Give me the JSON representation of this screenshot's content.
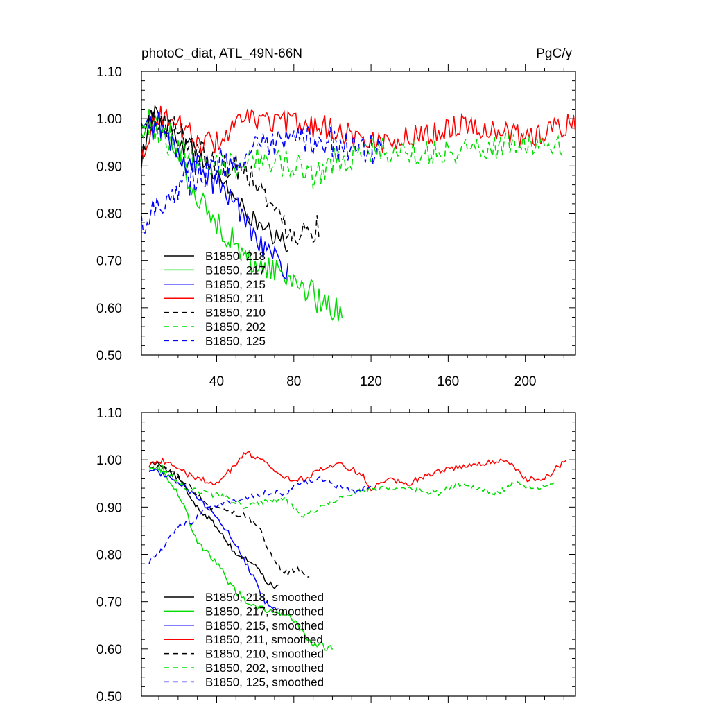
{
  "chart_data": [
    {
      "type": "line",
      "panel": "top",
      "title_left": "photoC_diat, ATL_49N-66N",
      "title_right": "PgC/y",
      "xlabel": "",
      "ylabel": "",
      "xlim": [
        1,
        226
      ],
      "ylim": [
        0.5,
        1.1
      ],
      "xticks": [
        40,
        80,
        120,
        160,
        200
      ],
      "xtick_labels": [
        "40",
        "80",
        "120",
        "160",
        "200"
      ],
      "yticks": [
        0.5,
        0.6,
        0.7,
        0.8,
        0.9,
        1.0,
        1.1
      ],
      "ytick_labels": [
        "0.50",
        "0.60",
        "0.70",
        "0.80",
        "0.90",
        "1.00",
        "1.10"
      ],
      "legend_position": "bottom-left",
      "series": [
        {
          "name": "B1850, 218",
          "color": "#000000",
          "dash": "solid",
          "length": 77,
          "anchors": [
            [
              1,
              0.89
            ],
            [
              5,
              1.02
            ],
            [
              15,
              0.98
            ],
            [
              30,
              0.92
            ],
            [
              45,
              0.86
            ],
            [
              55,
              0.8
            ],
            [
              65,
              0.76
            ],
            [
              77,
              0.73
            ]
          ],
          "noise": 0.025
        },
        {
          "name": "B1850, 217",
          "color": "#00dd00",
          "dash": "solid",
          "length": 105,
          "anchors": [
            [
              1,
              0.96
            ],
            [
              5,
              1.0
            ],
            [
              15,
              0.97
            ],
            [
              25,
              0.88
            ],
            [
              35,
              0.8
            ],
            [
              45,
              0.76
            ],
            [
              55,
              0.7
            ],
            [
              70,
              0.68
            ],
            [
              85,
              0.65
            ],
            [
              95,
              0.6
            ],
            [
              105,
              0.6
            ]
          ],
          "noise": 0.03
        },
        {
          "name": "B1850, 215",
          "color": "#0000ff",
          "dash": "solid",
          "length": 77,
          "anchors": [
            [
              1,
              0.97
            ],
            [
              10,
              0.99
            ],
            [
              20,
              0.92
            ],
            [
              30,
              0.9
            ],
            [
              40,
              0.86
            ],
            [
              50,
              0.82
            ],
            [
              60,
              0.76
            ],
            [
              70,
              0.7
            ],
            [
              77,
              0.68
            ]
          ],
          "noise": 0.03
        },
        {
          "name": "B1850, 211",
          "color": "#ff0000",
          "dash": "solid",
          "length": 226,
          "anchors": [
            [
              1,
              0.93
            ],
            [
              10,
              1.01
            ],
            [
              20,
              0.99
            ],
            [
              30,
              0.95
            ],
            [
              40,
              0.95
            ],
            [
              55,
              1.0
            ],
            [
              80,
              0.99
            ],
            [
              100,
              0.98
            ],
            [
              120,
              0.95
            ],
            [
              140,
              0.96
            ],
            [
              170,
              0.99
            ],
            [
              200,
              0.96
            ],
            [
              226,
              0.99
            ]
          ],
          "noise": 0.025
        },
        {
          "name": "B1850, 210",
          "color": "#000000",
          "dash": "dashed",
          "length": 93,
          "anchors": [
            [
              1,
              0.98
            ],
            [
              10,
              1.0
            ],
            [
              25,
              0.96
            ],
            [
              40,
              0.9
            ],
            [
              50,
              0.9
            ],
            [
              60,
              0.88
            ],
            [
              70,
              0.8
            ],
            [
              80,
              0.76
            ],
            [
              93,
              0.77
            ]
          ],
          "noise": 0.03
        },
        {
          "name": "B1850, 202",
          "color": "#00dd00",
          "dash": "dashed",
          "length": 220,
          "anchors": [
            [
              1,
              0.97
            ],
            [
              10,
              0.96
            ],
            [
              25,
              0.92
            ],
            [
              45,
              0.9
            ],
            [
              60,
              0.92
            ],
            [
              80,
              0.9
            ],
            [
              90,
              0.88
            ],
            [
              100,
              0.91
            ],
            [
              120,
              0.93
            ],
            [
              150,
              0.93
            ],
            [
              180,
              0.94
            ],
            [
              200,
              0.95
            ],
            [
              220,
              0.93
            ]
          ],
          "noise": 0.03
        },
        {
          "name": "B1850, 125",
          "color": "#0000ff",
          "dash": "dashed",
          "length": 125,
          "anchors": [
            [
              1,
              0.78
            ],
            [
              10,
              0.82
            ],
            [
              20,
              0.86
            ],
            [
              30,
              0.88
            ],
            [
              45,
              0.91
            ],
            [
              60,
              0.93
            ],
            [
              80,
              0.95
            ],
            [
              95,
              0.96
            ],
            [
              110,
              0.93
            ],
            [
              125,
              0.94
            ]
          ],
          "noise": 0.035
        }
      ]
    },
    {
      "type": "line",
      "panel": "bottom",
      "title_left": "",
      "title_right": "",
      "xlabel": "",
      "ylabel": "",
      "xlim": [
        1,
        226
      ],
      "ylim": [
        0.5,
        1.1
      ],
      "xticks": [
        40,
        80,
        120,
        160,
        200
      ],
      "xtick_labels": [],
      "yticks": [
        0.5,
        0.6,
        0.7,
        0.8,
        0.9,
        1.0,
        1.1
      ],
      "ytick_labels": [
        "0.50",
        "0.60",
        "0.70",
        "0.80",
        "0.90",
        "1.00",
        "1.10"
      ],
      "legend_position": "bottom-left",
      "series": [
        {
          "name": "B1850, 218, smoothed",
          "color": "#000000",
          "dash": "solid",
          "length": 72,
          "anchors": [
            [
              5,
              0.99
            ],
            [
              10,
              0.995
            ],
            [
              20,
              0.96
            ],
            [
              30,
              0.9
            ],
            [
              40,
              0.86
            ],
            [
              50,
              0.8
            ],
            [
              60,
              0.78
            ],
            [
              66,
              0.74
            ],
            [
              72,
              0.73
            ]
          ],
          "noise": 0.006
        },
        {
          "name": "B1850, 217, smoothed",
          "color": "#00dd00",
          "dash": "solid",
          "length": 100,
          "anchors": [
            [
              5,
              0.985
            ],
            [
              12,
              0.98
            ],
            [
              20,
              0.93
            ],
            [
              30,
              0.83
            ],
            [
              40,
              0.78
            ],
            [
              50,
              0.72
            ],
            [
              60,
              0.69
            ],
            [
              70,
              0.68
            ],
            [
              80,
              0.66
            ],
            [
              90,
              0.61
            ],
            [
              100,
              0.6
            ]
          ],
          "noise": 0.008
        },
        {
          "name": "B1850, 215, smoothed",
          "color": "#0000ff",
          "dash": "solid",
          "length": 72,
          "anchors": [
            [
              5,
              0.98
            ],
            [
              12,
              0.97
            ],
            [
              22,
              0.95
            ],
            [
              32,
              0.91
            ],
            [
              42,
              0.87
            ],
            [
              50,
              0.82
            ],
            [
              58,
              0.76
            ],
            [
              65,
              0.7
            ],
            [
              72,
              0.68
            ]
          ],
          "noise": 0.006
        },
        {
          "name": "B1850, 211, smoothed",
          "color": "#ff0000",
          "dash": "solid",
          "length": 221,
          "anchors": [
            [
              5,
              0.99
            ],
            [
              12,
              1.0
            ],
            [
              20,
              0.98
            ],
            [
              30,
              0.96
            ],
            [
              40,
              0.95
            ],
            [
              50,
              0.99
            ],
            [
              55,
              1.015
            ],
            [
              65,
              1.0
            ],
            [
              75,
              0.96
            ],
            [
              85,
              0.96
            ],
            [
              95,
              0.98
            ],
            [
              105,
              0.99
            ],
            [
              115,
              0.97
            ],
            [
              120,
              0.94
            ],
            [
              130,
              0.96
            ],
            [
              140,
              0.95
            ],
            [
              150,
              0.97
            ],
            [
              160,
              0.98
            ],
            [
              175,
              0.99
            ],
            [
              190,
              1.0
            ],
            [
              200,
              0.96
            ],
            [
              210,
              0.96
            ],
            [
              221,
              1.0
            ]
          ],
          "noise": 0.006
        },
        {
          "name": "B1850, 210, smoothed",
          "color": "#000000",
          "dash": "dashed",
          "length": 88,
          "anchors": [
            [
              5,
              0.99
            ],
            [
              15,
              0.98
            ],
            [
              25,
              0.95
            ],
            [
              35,
              0.9
            ],
            [
              45,
              0.89
            ],
            [
              55,
              0.88
            ],
            [
              62,
              0.86
            ],
            [
              68,
              0.8
            ],
            [
              75,
              0.76
            ],
            [
              82,
              0.77
            ],
            [
              88,
              0.755
            ]
          ],
          "noise": 0.006
        },
        {
          "name": "B1850, 202, smoothed",
          "color": "#00dd00",
          "dash": "dashed",
          "length": 215,
          "anchors": [
            [
              5,
              0.985
            ],
            [
              15,
              0.97
            ],
            [
              25,
              0.94
            ],
            [
              35,
              0.93
            ],
            [
              45,
              0.92
            ],
            [
              55,
              0.9
            ],
            [
              65,
              0.91
            ],
            [
              75,
              0.92
            ],
            [
              85,
              0.88
            ],
            [
              95,
              0.9
            ],
            [
              110,
              0.93
            ],
            [
              125,
              0.94
            ],
            [
              140,
              0.94
            ],
            [
              155,
              0.93
            ],
            [
              165,
              0.95
            ],
            [
              175,
              0.94
            ],
            [
              185,
              0.93
            ],
            [
              195,
              0.95
            ],
            [
              205,
              0.94
            ],
            [
              215,
              0.95
            ]
          ],
          "noise": 0.006
        },
        {
          "name": "B1850, 125, smoothed",
          "color": "#0000ff",
          "dash": "dashed",
          "length": 120,
          "anchors": [
            [
              5,
              0.785
            ],
            [
              12,
              0.81
            ],
            [
              20,
              0.86
            ],
            [
              28,
              0.87
            ],
            [
              35,
              0.9
            ],
            [
              45,
              0.91
            ],
            [
              55,
              0.92
            ],
            [
              65,
              0.93
            ],
            [
              75,
              0.93
            ],
            [
              85,
              0.95
            ],
            [
              95,
              0.96
            ],
            [
              105,
              0.94
            ],
            [
              112,
              0.93
            ],
            [
              120,
              0.945
            ]
          ],
          "noise": 0.006
        }
      ]
    }
  ]
}
